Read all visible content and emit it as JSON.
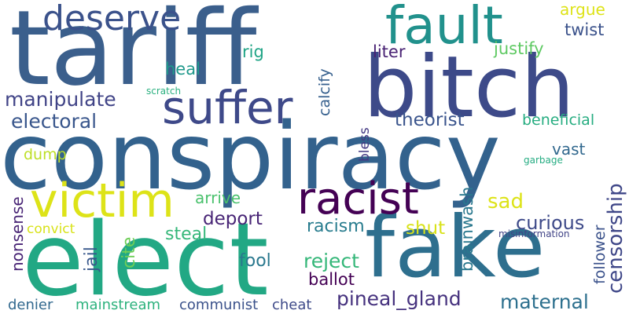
{
  "colors": {
    "tariff": "#3b5f8c",
    "bitch": "#3d4a89",
    "conspiracy": "#33628d",
    "elect": "#22a884",
    "fake": "#2e6f8e",
    "victim": "#dde318",
    "racist": "#440154",
    "fault": "#21918c",
    "suffer": "#3e4989",
    "deserve": "#3b528b",
    "manipulate": "#414487",
    "electoral": "#39568c",
    "curious": "#3e4a89",
    "maternal": "#2d708e",
    "pineal": "#46327e",
    "censorship": "#3f4788",
    "theorist": "#3a548c",
    "beneficial": "#27ad81",
    "deport": "#482576",
    "racism": "#287c8e",
    "sad": "#dde318",
    "reject": "#35b779",
    "shut": "#d8e219",
    "steal": "#35b779",
    "cite": "#6ece58",
    "fool": "#2a788e",
    "ballot": "#440154",
    "argue": "#dde318",
    "twist": "#3b528b",
    "justify": "#5ec962",
    "liter": "#482173",
    "rig": "#20a486",
    "heal": "#1f988b",
    "calcify": "#355f8d",
    "scratch": "#2ab07f",
    "dump": "#bddf26",
    "bless": "#443983",
    "arrive": "#4ac16d",
    "vast": "#31688e",
    "garbage": "#25ac82",
    "brainwash": "#2a788e",
    "follower": "#3b528b",
    "misinformation": "#414487",
    "convict": "#d8e219",
    "nonsense": "#482475",
    "jail": "#38588c",
    "denier": "#31688e",
    "mainstream": "#2db27d",
    "communist": "#3b528b",
    "cheat": "#3e4a89"
  },
  "words": {
    "tariff": "tariff",
    "bitch": "bitch",
    "conspiracy": "conspiracy",
    "elect": "elect",
    "fake": "fake",
    "victim": "victim",
    "racist": "racist",
    "fault": "fault",
    "suffer": "suffer",
    "deserve": "deserve",
    "manipulate": "manipulate",
    "electoral": "electoral",
    "curious": "curious",
    "maternal": "maternal",
    "pineal": "pineal_gland",
    "censorship": "censorship",
    "theorist": "theorist",
    "beneficial": "beneficial",
    "deport": "deport",
    "racism": "racism",
    "sad": "sad",
    "reject": "reject",
    "shut": "shut",
    "steal": "steal",
    "cite": "cite",
    "fool": "fool",
    "ballot": "ballot",
    "argue": "argue",
    "twist": "twist",
    "justify": "justify",
    "liter": "liter",
    "rig": "rig",
    "heal": "heal",
    "calcify": "calcify",
    "scratch": "scratch",
    "dump": "dump",
    "bless": "bless",
    "arrive": "arrive",
    "vast": "vast",
    "garbage": "garbage",
    "brainwash": "brainwash",
    "follower": "follower",
    "misinformation": "misinformation",
    "convict": "convict",
    "nonsense": "nonsense",
    "jail": "jail",
    "denier": "denier",
    "mainstream": "mainstream",
    "communist": "communist",
    "cheat": "cheat"
  }
}
